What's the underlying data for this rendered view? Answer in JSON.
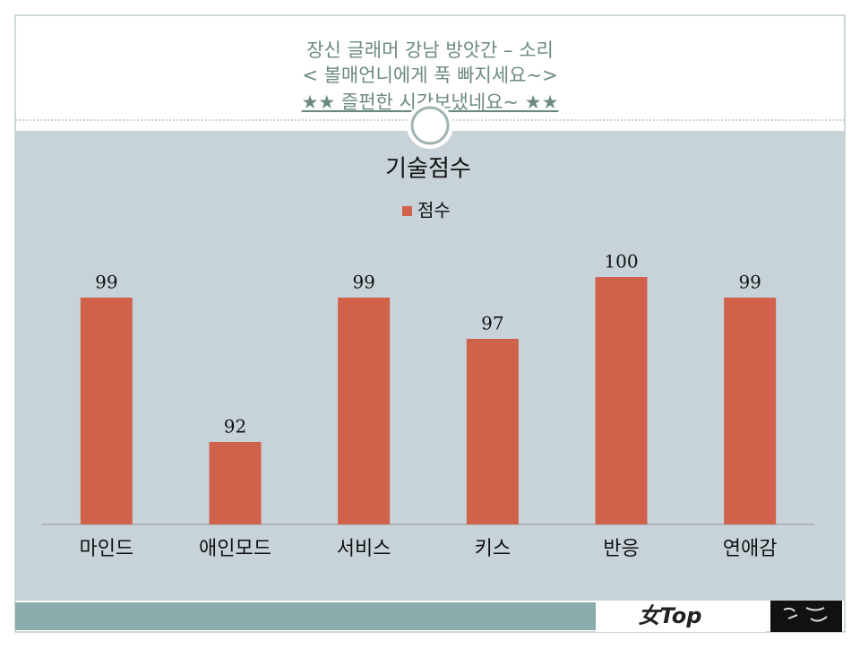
{
  "header": {
    "lines": [
      "장신 글래머 강남 방앗간 – 소리",
      "< 볼매언니에게 푹 빠지세요~>",
      "★★  즐펀한 시간보냈네요~  ★★"
    ]
  },
  "logo": "女Top",
  "chart_data": {
    "type": "bar",
    "title": "기술점수",
    "categories": [
      "마인드",
      "애인모드",
      "서비스",
      "키스",
      "반응",
      "연애감"
    ],
    "series": [
      {
        "name": "점수",
        "color": "#d0614a",
        "values": [
          99,
          92,
          99,
          97,
          100,
          99
        ]
      }
    ],
    "ylim": [
      88,
      101
    ],
    "legend": "top"
  }
}
